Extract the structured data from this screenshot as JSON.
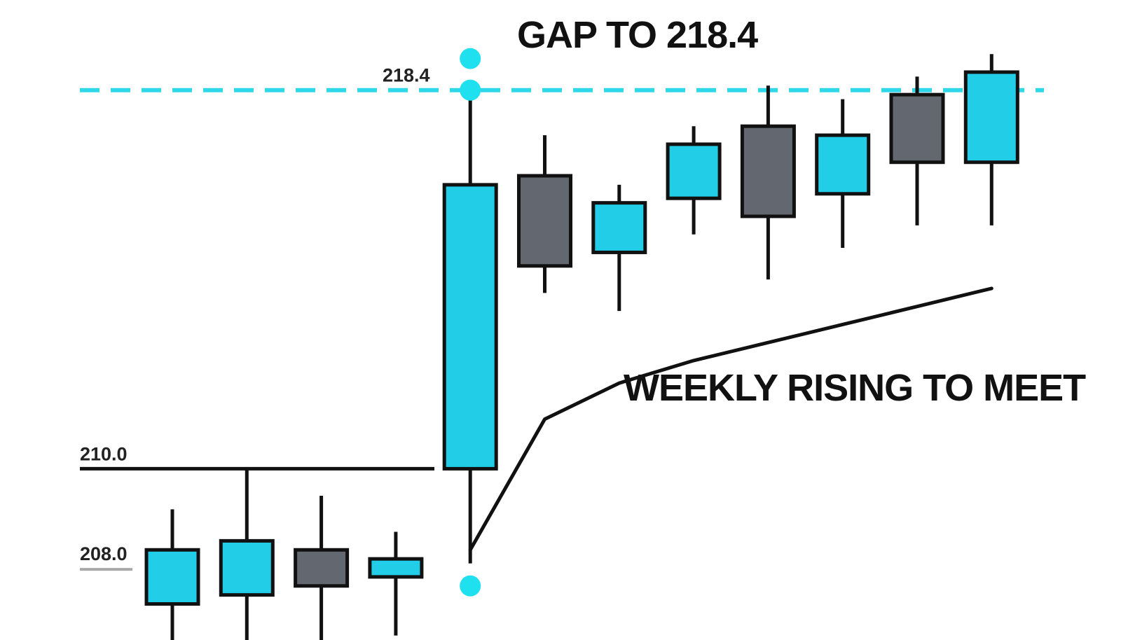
{
  "colors": {
    "bull": "#22cde8",
    "bear": "#636870",
    "gap_line": "#2fd7ea",
    "marker": "#1fe0ee",
    "outline": "#111111",
    "weekly": "#111111",
    "label_underline": "#a9a9a9",
    "background": "#ffffff"
  },
  "chart_data": {
    "type": "candlestick",
    "ylim": [
      206.2,
      220.4
    ],
    "candles": [
      {
        "open": 208.2,
        "high": 209.1,
        "low": 206.0,
        "close": 207.0,
        "direction": "bull"
      },
      {
        "open": 208.4,
        "high": 210.0,
        "low": 206.0,
        "close": 207.2,
        "direction": "bull"
      },
      {
        "open": 207.4,
        "high": 209.4,
        "low": 206.0,
        "close": 208.2,
        "direction": "bear"
      },
      {
        "open": 207.6,
        "high": 208.6,
        "low": 206.3,
        "close": 208.0,
        "direction": "bull"
      },
      {
        "open": 210.0,
        "high": 218.4,
        "low": 207.9,
        "close": 216.3,
        "direction": "bull"
      },
      {
        "open": 216.5,
        "high": 217.4,
        "low": 213.9,
        "close": 214.5,
        "direction": "bear"
      },
      {
        "open": 214.8,
        "high": 216.3,
        "low": 213.5,
        "close": 215.9,
        "direction": "bull"
      },
      {
        "open": 216.0,
        "high": 217.6,
        "low": 215.2,
        "close": 217.2,
        "direction": "bull"
      },
      {
        "open": 217.6,
        "high": 218.5,
        "low": 214.2,
        "close": 215.6,
        "direction": "bear"
      },
      {
        "open": 216.1,
        "high": 218.2,
        "low": 214.9,
        "close": 217.4,
        "direction": "bull"
      },
      {
        "open": 218.3,
        "high": 218.7,
        "low": 215.4,
        "close": 216.8,
        "direction": "bear"
      },
      {
        "open": 216.8,
        "high": 219.2,
        "low": 215.4,
        "close": 218.8,
        "direction": "bull"
      }
    ],
    "levels": [
      {
        "value": 218.4,
        "label": "218.4",
        "style": "dashed"
      },
      {
        "value": 210.0,
        "label": "210.0",
        "style": "solid"
      },
      {
        "value": 208.0,
        "label": "208.0",
        "style": "underline"
      }
    ],
    "weekly_line": {
      "from_candle": 4,
      "values": [
        208.2,
        211.1,
        211.9,
        212.4,
        212.8,
        213.2,
        213.6,
        214.0
      ]
    },
    "markers": [
      {
        "candle": 4,
        "value": 219.1
      },
      {
        "candle": 4,
        "value": 218.4
      },
      {
        "candle": 4,
        "value": 207.4
      }
    ],
    "annotations": {
      "gap": "GAP TO 218.4",
      "weekly": "WEEKLY RISING TO MEET"
    }
  }
}
